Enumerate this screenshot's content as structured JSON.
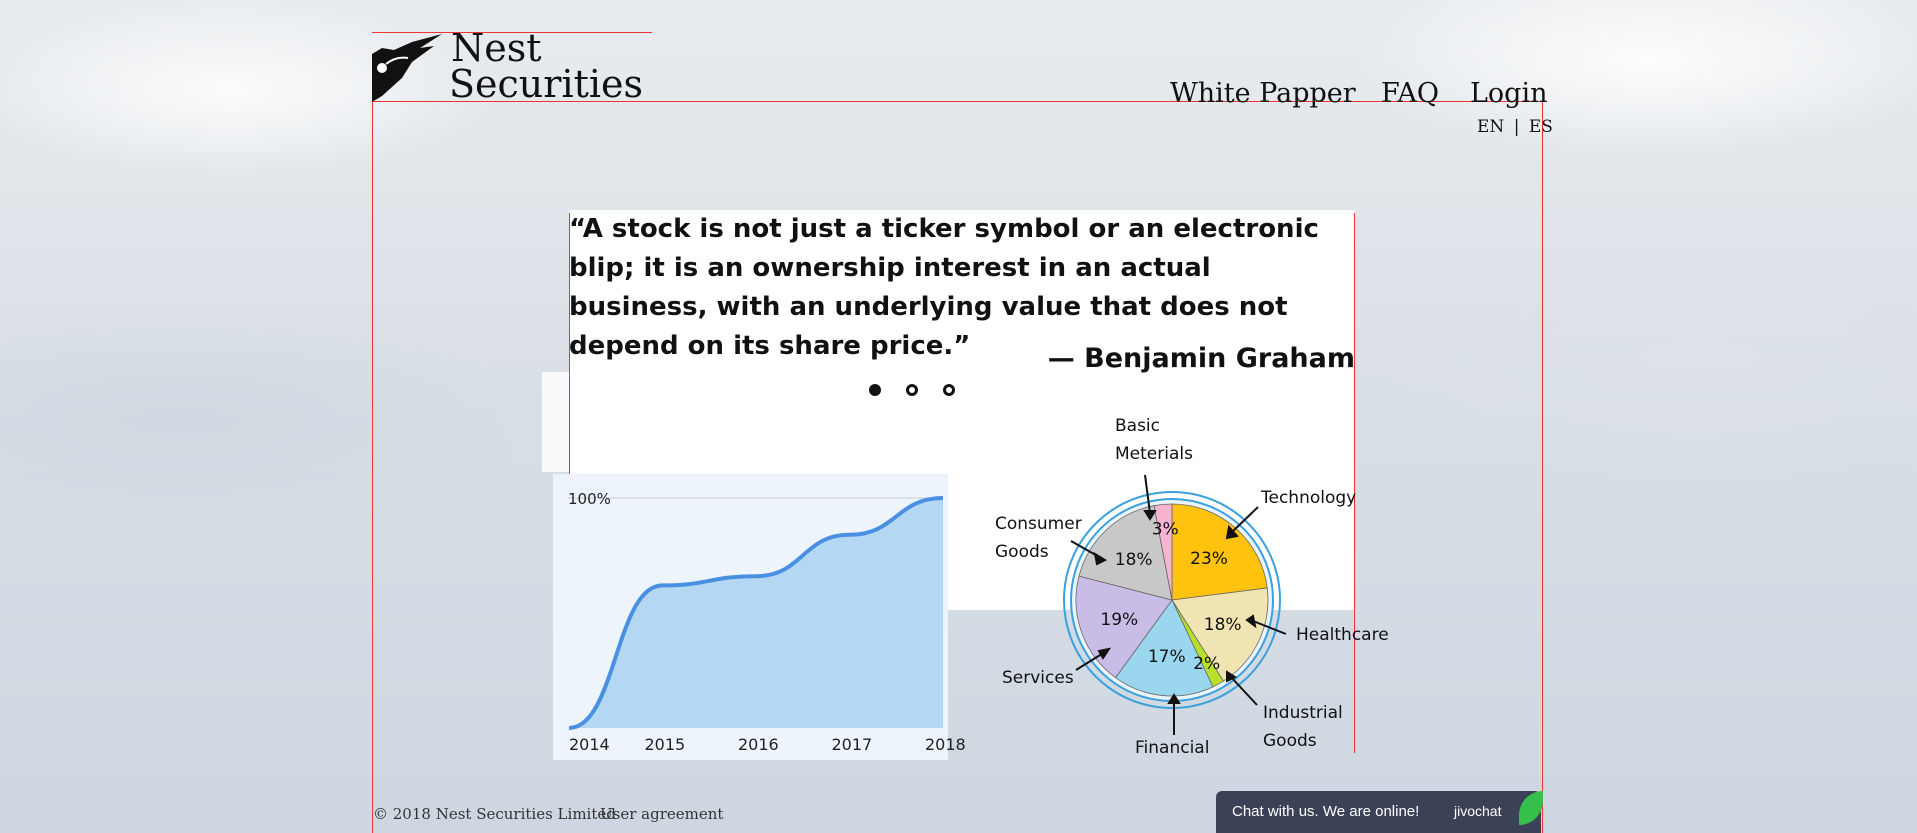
{
  "brand": {
    "line1": "Nest",
    "line2": "Securities"
  },
  "nav": {
    "white_paper": "White Papper",
    "faq": "FAQ",
    "login": "Login"
  },
  "lang": {
    "en": "EN",
    "sep": "|",
    "es": "ES"
  },
  "quote": {
    "text": "“A stock is not just a ticker symbol or an electronic blip; it is an ownership interest in an actual business, with an underlying value that does not depend on its share price.”",
    "author": "— Benjamin Graham"
  },
  "slider": {
    "count": 3,
    "active": 0
  },
  "chart_data": [
    {
      "type": "area",
      "x": [
        "2014",
        "2015",
        "2016",
        "2017",
        "2018"
      ],
      "series": [
        {
          "values": [
            0,
            62,
            66,
            84,
            100
          ]
        }
      ],
      "ylim": [
        0,
        100
      ],
      "tick_label_top": "100%",
      "color": "#4a90e2"
    },
    {
      "type": "pie",
      "slices": [
        {
          "label": "Technology",
          "value": 23,
          "display": "23%",
          "color": "#ffc20e"
        },
        {
          "label": "Healthcare",
          "value": 18,
          "display": "18%",
          "color": "#f1e4b3"
        },
        {
          "label": "Industrial Goods",
          "value": 2,
          "display": "2%",
          "color": "#b8e02b"
        },
        {
          "label": "Financial",
          "value": 17,
          "display": "17%",
          "color": "#9ad7ee"
        },
        {
          "label": "Services",
          "value": 19,
          "display": "19%",
          "color": "#c9bde8"
        },
        {
          "label": "Consumer Goods",
          "value": 18,
          "display": "18%",
          "color": "#c8c8c8"
        },
        {
          "label": "Basic Meterials",
          "value": 3,
          "display": "3%",
          "color": "#f7b3cf"
        }
      ],
      "labels": {
        "basic1": "Basic",
        "basic2": "Meterials",
        "technology": "Technology",
        "consumer1": "Consumer",
        "consumer2": "Goods",
        "healthcare": "Healthcare",
        "services": "Services",
        "industrial1": "Industrial",
        "industrial2": "Goods",
        "financial": "Financial"
      }
    }
  ],
  "footer": {
    "copyright": "© 2018 Nest Securities Limited",
    "agreement": "User agreement"
  },
  "chat": {
    "label": "Chat with us. We are online!",
    "brand": "jivochat"
  }
}
